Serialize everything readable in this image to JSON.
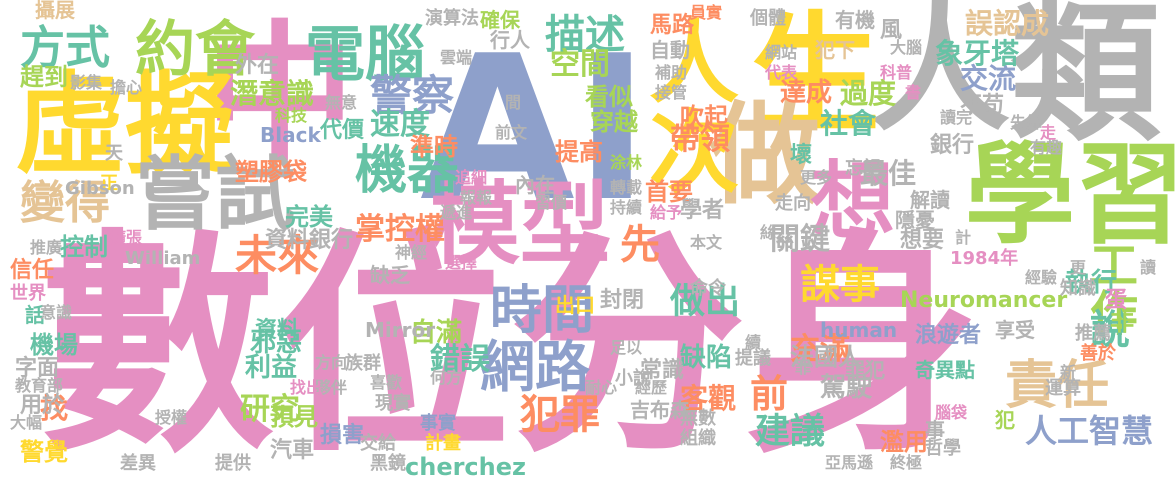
{
  "palette": [
    "#e58fc2",
    "#8ea0cb",
    "#a7d556",
    "#ffd92f",
    "#e5c495",
    "#b3b3b3",
    "#fd8d62",
    "#66c2a5"
  ],
  "words": [
    {
      "text": "數位分身",
      "c": "#e58fc2"
    },
    {
      "text": "AI",
      "c": "#8ea0cb"
    },
    {
      "text": "類",
      "c": "#b3b3b3"
    },
    {
      "text": "人",
      "c": "#b3b3b3"
    },
    {
      "text": "生",
      "c": "#ffd92f"
    },
    {
      "text": "中",
      "c": "#e58fc2"
    },
    {
      "text": "虛擬",
      "c": "#ffd92f"
    },
    {
      "text": "做",
      "c": "#e5c495"
    },
    {
      "text": "學習",
      "c": "#a7d556"
    },
    {
      "text": "模型",
      "c": "#e58fc2"
    },
    {
      "text": "嘗試",
      "c": "#b3b3b3"
    },
    {
      "text": "人次",
      "c": "#ffd92f"
    },
    {
      "text": "想",
      "c": "#e58fc2"
    },
    {
      "text": "電腦",
      "c": "#66c2a5"
    },
    {
      "text": "約會",
      "c": "#a7d556"
    },
    {
      "text": "機器",
      "c": "#66c2a5"
    },
    {
      "text": "網路",
      "c": "#8ea0cb"
    },
    {
      "text": "時間",
      "c": "#8ea0cb"
    },
    {
      "text": "責任",
      "c": "#e5c495"
    },
    {
      "text": "工作",
      "c": "#a7d556"
    },
    {
      "text": "變得",
      "c": "#e5c495"
    },
    {
      "text": "方式",
      "c": "#66c2a5"
    },
    {
      "text": "警察",
      "c": "#8ea0cb"
    },
    {
      "text": "未來",
      "c": "#fd8d62"
    },
    {
      "text": "描述",
      "c": "#66c2a5"
    },
    {
      "text": "謀事",
      "c": "#ffd92f"
    },
    {
      "text": "犯罪",
      "c": "#fd8d62"
    },
    {
      "text": "說",
      "c": "#66c2a5"
    },
    {
      "text": "先",
      "c": "#fd8d62"
    },
    {
      "text": "建議",
      "c": "#66c2a5"
    },
    {
      "text": "人工智慧",
      "c": "#8ea0cb"
    },
    {
      "text": "空間",
      "c": "#a7d556"
    },
    {
      "text": "速度",
      "c": "#66c2a5"
    },
    {
      "text": "掌控權",
      "c": "#fd8d62"
    },
    {
      "text": "帶領",
      "c": "#fd8d62"
    },
    {
      "text": "社會",
      "c": "#66c2a5"
    },
    {
      "text": "交流",
      "c": "#8ea0cb"
    },
    {
      "text": "潛意識",
      "c": "#a7d556"
    },
    {
      "text": "前",
      "c": "#fd8d62"
    },
    {
      "text": "做出",
      "c": "#66c2a5"
    },
    {
      "text": "關鍵",
      "c": "#b3b3b3"
    },
    {
      "text": "最佳",
      "c": "#b3b3b3"
    },
    {
      "text": "過度",
      "c": "#a7d556"
    },
    {
      "text": "誤認成",
      "c": "#e5c495"
    },
    {
      "text": "象牙塔",
      "c": "#66c2a5"
    },
    {
      "text": "馬路",
      "c": "#fd8d62"
    },
    {
      "text": "錯誤",
      "c": "#66c2a5"
    },
    {
      "text": "自滿",
      "c": "#a7d556"
    },
    {
      "text": "執行",
      "c": "#66c2a5"
    },
    {
      "text": "充滿",
      "c": "#fd8d62"
    },
    {
      "text": "研究",
      "c": "#a7d556"
    },
    {
      "text": "邪惡",
      "c": "#66c2a5"
    },
    {
      "text": "達成",
      "c": "#fd8d62"
    },
    {
      "text": "缺陷",
      "c": "#66c2a5"
    },
    {
      "text": "客觀",
      "c": "#fd8d62"
    },
    {
      "text": "駕駛",
      "c": "#b3b3b3"
    },
    {
      "text": "駕駛",
      "c": "#b3b3b3"
    },
    {
      "text": "找",
      "c": "#fd8d62"
    },
    {
      "text": "控制",
      "c": "#66c2a5"
    },
    {
      "text": "信任",
      "c": "#fd8d62"
    },
    {
      "text": "首要",
      "c": "#fd8d62"
    },
    {
      "text": "提高",
      "c": "#fd8d62"
    },
    {
      "text": "看似",
      "c": "#a7d556"
    },
    {
      "text": "穿越",
      "c": "#a7d556"
    },
    {
      "text": "吹起",
      "c": "#fd8d62"
    },
    {
      "text": "準時",
      "c": "#fd8d62"
    },
    {
      "text": "塑膠袋",
      "c": "#fd8d62"
    },
    {
      "text": "完美",
      "c": "#66c2a5"
    },
    {
      "text": "資料銀行",
      "c": "#b3b3b3"
    },
    {
      "text": "內在",
      "c": "#b3b3b3"
    },
    {
      "text": "行人",
      "c": "#b3b3b3"
    },
    {
      "text": "自動",
      "c": "#b3b3b3"
    },
    {
      "text": "確保",
      "c": "#a7d556"
    },
    {
      "text": "出口",
      "c": "#ffd92f"
    },
    {
      "text": "封閉",
      "c": "#b3b3b3"
    },
    {
      "text": "命令",
      "c": "#b3b3b3"
    },
    {
      "text": "常識",
      "c": "#b3b3b3"
    },
    {
      "text": "法國人",
      "c": "#b3b3b3"
    },
    {
      "text": "罪犯",
      "c": "#b3b3b3"
    },
    {
      "text": "小說",
      "c": "#b3b3b3"
    },
    {
      "text": "吉布森",
      "c": "#b3b3b3"
    },
    {
      "text": "濫用",
      "c": "#fd8d62"
    },
    {
      "text": "損害",
      "c": "#8ea0cb"
    },
    {
      "text": "汽車",
      "c": "#b3b3b3"
    },
    {
      "text": "預見",
      "c": "#a7d556"
    },
    {
      "text": "利益",
      "c": "#66c2a5"
    },
    {
      "text": "代價",
      "c": "#66c2a5"
    },
    {
      "text": "外在",
      "c": "#b3b3b3"
    },
    {
      "text": "字面",
      "c": "#b3b3b3"
    },
    {
      "text": "資料",
      "c": "#66c2a5"
    },
    {
      "text": "機場",
      "c": "#66c2a5"
    },
    {
      "text": "用於",
      "c": "#b3b3b3"
    },
    {
      "text": "警覺",
      "c": "#ffd92f"
    },
    {
      "text": "話",
      "c": "#66c2a5"
    },
    {
      "text": "世界",
      "c": "#e58fc2"
    },
    {
      "text": "趕到",
      "c": "#a7d556"
    },
    {
      "text": "攝展",
      "c": "#e5c495"
    },
    {
      "text": "天",
      "c": "#b3b3b3"
    },
    {
      "text": "正",
      "c": "#ffd92f"
    },
    {
      "text": "Gibson",
      "c": "#b3b3b3"
    },
    {
      "text": "William",
      "c": "#b3b3b3"
    },
    {
      "text": "Black",
      "c": "#8ea0cb"
    },
    {
      "text": "Mirror",
      "c": "#b3b3b3"
    },
    {
      "text": "human",
      "c": "#8ea0cb"
    },
    {
      "text": "cherchez",
      "c": "#66c2a5"
    },
    {
      "text": "Neuromancer",
      "c": "#a7d556"
    },
    {
      "text": "1984年",
      "c": "#e58fc2"
    },
    {
      "text": "浪遊者",
      "c": "#8ea0cb"
    },
    {
      "text": "享受",
      "c": "#b3b3b3"
    },
    {
      "text": "奇異點",
      "c": "#66c2a5"
    },
    {
      "text": "想要",
      "c": "#b3b3b3"
    },
    {
      "text": "隱憂",
      "c": "#b3b3b3"
    },
    {
      "text": "解讀",
      "c": "#b3b3b3"
    },
    {
      "text": "忘記",
      "c": "#b3b3b3"
    },
    {
      "text": "更多",
      "c": "#b3b3b3"
    },
    {
      "text": "走向",
      "c": "#b3b3b3"
    },
    {
      "text": "壞",
      "c": "#66c2a5"
    },
    {
      "text": "銀行",
      "c": "#b3b3b3"
    },
    {
      "text": "不苟",
      "c": "#b3b3b3"
    },
    {
      "text": "有機",
      "c": "#b3b3b3"
    },
    {
      "text": "犯下",
      "c": "#e5c495"
    },
    {
      "text": "個體",
      "c": "#b3b3b3"
    },
    {
      "text": "員實",
      "c": "#fd8d62"
    },
    {
      "text": "演算法",
      "c": "#b3b3b3"
    },
    {
      "text": "學者",
      "c": "#b3b3b3"
    },
    {
      "text": "風",
      "c": "#b3b3b3"
    },
    {
      "text": "經驗",
      "c": "#b3b3b3"
    },
    {
      "text": "知識",
      "c": "#b3b3b3"
    },
    {
      "text": "讀",
      "c": "#b3b3b3"
    },
    {
      "text": "非",
      "c": "#a7d556"
    },
    {
      "text": "蛋",
      "c": "#e58fc2"
    },
    {
      "text": "推薦",
      "c": "#b3b3b3"
    },
    {
      "text": "善於",
      "c": "#fd8d62"
    },
    {
      "text": "運算",
      "c": "#b3b3b3"
    },
    {
      "text": "新",
      "c": "#b3b3b3"
    },
    {
      "text": "腦袋",
      "c": "#e58fc2"
    },
    {
      "text": "哲學",
      "c": "#b3b3b3"
    },
    {
      "text": "亞馬遜",
      "c": "#b3b3b3"
    },
    {
      "text": "終極",
      "c": "#b3b3b3"
    },
    {
      "text": "事",
      "c": "#b3b3b3"
    },
    {
      "text": "犯",
      "c": "#a7d556"
    },
    {
      "text": "差異",
      "c": "#b3b3b3"
    },
    {
      "text": "提供",
      "c": "#b3b3b3"
    },
    {
      "text": "黑鏡",
      "c": "#b3b3b3"
    },
    {
      "text": "交給",
      "c": "#b3b3b3"
    },
    {
      "text": "計畫",
      "c": "#ffd92f"
    },
    {
      "text": "事實",
      "c": "#8ea0cb"
    },
    {
      "text": "組織",
      "c": "#b3b3b3"
    },
    {
      "text": "無數",
      "c": "#b3b3b3"
    },
    {
      "text": "續",
      "c": "#b3b3b3"
    },
    {
      "text": "提議",
      "c": "#b3b3b3"
    },
    {
      "text": "足以",
      "c": "#b3b3b3"
    },
    {
      "text": "經歷",
      "c": "#b3b3b3"
    },
    {
      "text": "耐心",
      "c": "#b3b3b3"
    },
    {
      "text": "何方",
      "c": "#b3b3b3"
    },
    {
      "text": "現實",
      "c": "#b3b3b3"
    },
    {
      "text": "喜歡",
      "c": "#b3b3b3"
    },
    {
      "text": "夥伴",
      "c": "#b3b3b3"
    },
    {
      "text": "找出",
      "c": "#e58fc2"
    },
    {
      "text": "族群",
      "c": "#b3b3b3"
    },
    {
      "text": "方向",
      "c": "#b3b3b3"
    },
    {
      "text": "神經",
      "c": "#b3b3b3"
    },
    {
      "text": "選擇",
      "c": "#e58fc2"
    },
    {
      "text": "缺乏",
      "c": "#b3b3b3"
    },
    {
      "text": "大幅",
      "c": "#b3b3b3"
    },
    {
      "text": "教育部",
      "c": "#b3b3b3"
    },
    {
      "text": "意識",
      "c": "#b3b3b3"
    },
    {
      "text": "推廣",
      "c": "#b3b3b3"
    },
    {
      "text": "擴張",
      "c": "#e58fc2"
    },
    {
      "text": "授權",
      "c": "#b3b3b3"
    },
    {
      "text": "影集",
      "c": "#b3b3b3"
    },
    {
      "text": "擔心",
      "c": "#b3b3b3"
    },
    {
      "text": "雲端",
      "c": "#b3b3b3"
    },
    {
      "text": "科技",
      "c": "#a7d556"
    },
    {
      "text": "無意",
      "c": "#b3b3b3"
    },
    {
      "text": "間",
      "c": "#b3b3b3"
    },
    {
      "text": "前文",
      "c": "#b3b3b3"
    },
    {
      "text": "補助",
      "c": "#b3b3b3"
    },
    {
      "text": "接管",
      "c": "#b3b3b3"
    },
    {
      "text": "網站",
      "c": "#b3b3b3"
    },
    {
      "text": "代表",
      "c": "#e58fc2"
    },
    {
      "text": "大腦",
      "c": "#b3b3b3"
    },
    {
      "text": "科普",
      "c": "#e58fc2"
    },
    {
      "text": "書",
      "c": "#e58fc2"
    },
    {
      "text": "讀完",
      "c": "#b3b3b3"
    },
    {
      "text": "先鋒",
      "c": "#b3b3b3"
    },
    {
      "text": "有趣",
      "c": "#b3b3b3"
    },
    {
      "text": "走",
      "c": "#e58fc2"
    },
    {
      "text": "追細",
      "c": "#e58fc2"
    },
    {
      "text": "報報",
      "c": "#b3b3b3"
    },
    {
      "text": "涂林",
      "c": "#a7d556"
    },
    {
      "text": "習價",
      "c": "#b3b3b3"
    },
    {
      "text": "轉載",
      "c": "#b3b3b3"
    },
    {
      "text": "持續",
      "c": "#b3b3b3"
    },
    {
      "text": "遞進",
      "c": "#b3b3b3"
    },
    {
      "text": "給予",
      "c": "#e58fc2"
    },
    {
      "text": "本文",
      "c": "#b3b3b3"
    },
    {
      "text": "絲",
      "c": "#b3b3b3"
    },
    {
      "text": "計",
      "c": "#b3b3b3"
    },
    {
      "text": "更",
      "c": "#b3b3b3"
    },
    {
      "text": "罪",
      "c": "#b3b3b3"
    }
  ]
}
